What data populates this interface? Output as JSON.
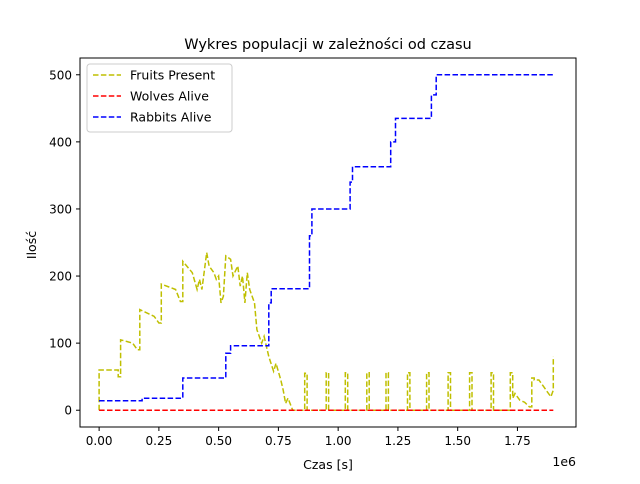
{
  "chart_data": {
    "type": "line",
    "title": "Wykres populacji w zależności od czasu",
    "xlabel": "Czas [s]",
    "ylabel": "Ilość",
    "x_offset_label": "1e6",
    "xlim": [
      -80000,
      1995000
    ],
    "ylim": [
      -25,
      525
    ],
    "x_scale": 1000000,
    "xticks": [
      0,
      250000,
      500000,
      750000,
      1000000,
      1250000,
      1500000,
      1750000
    ],
    "xtick_labels": [
      "0.00",
      "0.25",
      "0.50",
      "0.75",
      "1.00",
      "1.25",
      "1.50",
      "1.75"
    ],
    "yticks": [
      0,
      100,
      200,
      300,
      400,
      500
    ],
    "ytick_labels": [
      "0",
      "100",
      "200",
      "300",
      "400",
      "500"
    ],
    "grid": false,
    "legend_position": "upper left",
    "series": [
      {
        "name": "Fruits Present",
        "color": "#bfbf00",
        "linestyle": "dashed",
        "x": [
          0,
          0,
          80000,
          80000,
          90000,
          90000,
          140000,
          160000,
          170000,
          170000,
          230000,
          250000,
          260000,
          260000,
          320000,
          340000,
          350000,
          350000,
          390000,
          410000,
          420000,
          430000,
          450000,
          460000,
          480000,
          490000,
          500000,
          510000,
          520000,
          530000,
          550000,
          560000,
          580000,
          590000,
          600000,
          610000,
          620000,
          630000,
          650000,
          660000,
          680000,
          690000,
          710000,
          730000,
          740000,
          760000,
          770000,
          780000,
          790000,
          810000,
          860000,
          860000,
          870000,
          870000,
          950000,
          950000,
          960000,
          960000,
          1030000,
          1030000,
          1040000,
          1040000,
          1120000,
          1120000,
          1130000,
          1130000,
          1200000,
          1200000,
          1210000,
          1210000,
          1290000,
          1290000,
          1300000,
          1300000,
          1370000,
          1370000,
          1380000,
          1380000,
          1460000,
          1460000,
          1470000,
          1470000,
          1550000,
          1550000,
          1560000,
          1560000,
          1640000,
          1640000,
          1650000,
          1650000,
          1720000,
          1720000,
          1730000,
          1730000,
          1740000,
          1760000,
          1780000,
          1800000,
          1810000,
          1810000,
          1820000,
          1820000,
          1840000,
          1860000,
          1880000,
          1890000,
          1900000,
          1900000
        ],
        "y": [
          0,
          60,
          60,
          50,
          50,
          105,
          100,
          90,
          90,
          150,
          140,
          130,
          130,
          188,
          180,
          162,
          162,
          222,
          205,
          180,
          195,
          180,
          235,
          215,
          205,
          195,
          200,
          160,
          170,
          230,
          225,
          200,
          215,
          185,
          200,
          160,
          205,
          180,
          160,
          120,
          100,
          110,
          80,
          58,
          70,
          45,
          30,
          10,
          18,
          0,
          0,
          55,
          55,
          0,
          0,
          56,
          56,
          0,
          0,
          56,
          56,
          0,
          0,
          56,
          56,
          0,
          0,
          56,
          56,
          0,
          0,
          56,
          56,
          0,
          0,
          56,
          56,
          0,
          0,
          56,
          56,
          0,
          0,
          56,
          56,
          0,
          0,
          56,
          56,
          0,
          0,
          56,
          56,
          18,
          25,
          15,
          12,
          5,
          5,
          48,
          48,
          45,
          45,
          35,
          25,
          20,
          30,
          80
        ]
      },
      {
        "name": "Wolves Alive",
        "color": "#ff0000",
        "linestyle": "dashed",
        "x": [
          0,
          1900000
        ],
        "y": [
          0,
          0
        ]
      },
      {
        "name": "Rabbits Alive",
        "color": "#0000ff",
        "linestyle": "dashed",
        "x": [
          0,
          180000,
          180000,
          350000,
          350000,
          530000,
          530000,
          550000,
          550000,
          710000,
          710000,
          720000,
          720000,
          880000,
          880000,
          890000,
          890000,
          1050000,
          1050000,
          1060000,
          1060000,
          1220000,
          1220000,
          1240000,
          1240000,
          1390000,
          1390000,
          1410000,
          1410000,
          1900000
        ],
        "y": [
          14,
          14,
          18,
          18,
          48,
          48,
          85,
          85,
          96,
          96,
          160,
          160,
          181,
          181,
          260,
          260,
          300,
          300,
          340,
          340,
          363,
          363,
          400,
          400,
          435,
          435,
          470,
          470,
          500,
          500
        ]
      }
    ]
  }
}
